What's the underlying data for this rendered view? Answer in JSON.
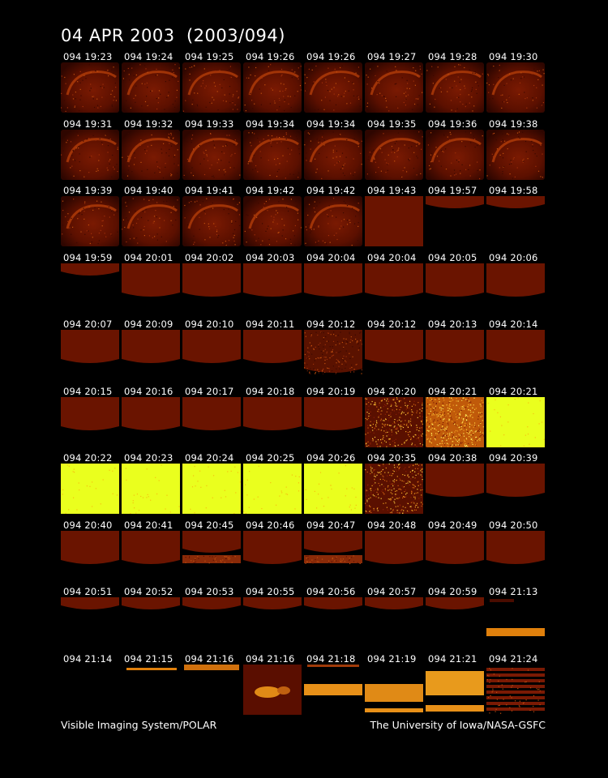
{
  "title": "04 APR 2003  (2003/094)",
  "footer": {
    "left": "Visible Imaging System/POLAR",
    "right": "The University of Iowa/NASA-GSFC"
  },
  "colors": {
    "background": "#000000",
    "dim": "#3a0800",
    "red": "#6a1400",
    "glow": "#b8400a",
    "orange": "#e0800c",
    "yellow": "#eaff1e"
  },
  "frames": [
    {
      "time": "094 19:23",
      "look": "aurora"
    },
    {
      "time": "094 19:24",
      "look": "aurora"
    },
    {
      "time": "094 19:25",
      "look": "aurora"
    },
    {
      "time": "094 19:26",
      "look": "aurora"
    },
    {
      "time": "094 19:26",
      "look": "aurora"
    },
    {
      "time": "094 19:27",
      "look": "aurora"
    },
    {
      "time": "094 19:28",
      "look": "aurora"
    },
    {
      "time": "094 19:30",
      "look": "aurora"
    },
    {
      "time": "094 19:31",
      "look": "aurora"
    },
    {
      "time": "094 19:32",
      "look": "aurora"
    },
    {
      "time": "094 19:33",
      "look": "aurora"
    },
    {
      "time": "094 19:34",
      "look": "aurora"
    },
    {
      "time": "094 19:34",
      "look": "aurora"
    },
    {
      "time": "094 19:35",
      "look": "aurora"
    },
    {
      "time": "094 19:36",
      "look": "aurora"
    },
    {
      "time": "094 19:38",
      "look": "aurora"
    },
    {
      "time": "094 19:39",
      "look": "aurora"
    },
    {
      "time": "094 19:40",
      "look": "aurora"
    },
    {
      "time": "094 19:41",
      "look": "aurora"
    },
    {
      "time": "094 19:42",
      "look": "aurora"
    },
    {
      "time": "094 19:42",
      "look": "aurora"
    },
    {
      "time": "094 19:43",
      "look": "red"
    },
    {
      "time": "094 19:57",
      "look": "strip"
    },
    {
      "time": "094 19:58",
      "look": "strip"
    },
    {
      "time": "094 19:59",
      "look": "strip"
    },
    {
      "time": "094 20:01",
      "look": "band"
    },
    {
      "time": "094 20:02",
      "look": "band"
    },
    {
      "time": "094 20:03",
      "look": "band"
    },
    {
      "time": "094 20:04",
      "look": "band"
    },
    {
      "time": "094 20:04",
      "look": "band"
    },
    {
      "time": "094 20:05",
      "look": "band"
    },
    {
      "time": "094 20:06",
      "look": "band"
    },
    {
      "time": "094 20:07",
      "look": "band"
    },
    {
      "time": "094 20:09",
      "look": "band"
    },
    {
      "time": "094 20:10",
      "look": "band"
    },
    {
      "time": "094 20:11",
      "look": "band"
    },
    {
      "time": "094 20:12",
      "look": "speckle"
    },
    {
      "time": "094 20:12",
      "look": "band"
    },
    {
      "time": "094 20:13",
      "look": "band"
    },
    {
      "time": "094 20:14",
      "look": "band"
    },
    {
      "time": "094 20:15",
      "look": "band"
    },
    {
      "time": "094 20:16",
      "look": "band"
    },
    {
      "time": "094 20:17",
      "look": "band"
    },
    {
      "time": "094 20:18",
      "look": "band"
    },
    {
      "time": "094 20:19",
      "look": "band"
    },
    {
      "time": "094 20:20",
      "look": "noise"
    },
    {
      "time": "094 20:21",
      "look": "noise-bright"
    },
    {
      "time": "094 20:21",
      "look": "yellow"
    },
    {
      "time": "094 20:22",
      "look": "yellow"
    },
    {
      "time": "094 20:23",
      "look": "yellow"
    },
    {
      "time": "094 20:24",
      "look": "yellow"
    },
    {
      "time": "094 20:25",
      "look": "yellow"
    },
    {
      "time": "094 20:26",
      "look": "yellow"
    },
    {
      "time": "094 20:35",
      "look": "noise"
    },
    {
      "time": "094 20:38",
      "look": "band"
    },
    {
      "time": "094 20:39",
      "look": "band"
    },
    {
      "time": "094 20:40",
      "look": "band"
    },
    {
      "time": "094 20:41",
      "look": "band"
    },
    {
      "time": "094 20:45",
      "look": "band-low"
    },
    {
      "time": "094 20:46",
      "look": "band"
    },
    {
      "time": "094 20:47",
      "look": "band-low"
    },
    {
      "time": "094 20:48",
      "look": "band"
    },
    {
      "time": "094 20:49",
      "look": "band"
    },
    {
      "time": "094 20:50",
      "look": "band"
    },
    {
      "time": "094 20:51",
      "look": "strip"
    },
    {
      "time": "094 20:52",
      "look": "strip"
    },
    {
      "time": "094 20:53",
      "look": "strip"
    },
    {
      "time": "094 20:55",
      "look": "strip"
    },
    {
      "time": "094 20:56",
      "look": "strip"
    },
    {
      "time": "094 20:57",
      "look": "strip"
    },
    {
      "time": "094 20:59",
      "look": "strip"
    },
    {
      "time": "094 21:13",
      "look": "orange-line"
    },
    {
      "time": "094 21:14",
      "look": "empty"
    },
    {
      "time": "094 21:15",
      "look": "thin-orange"
    },
    {
      "time": "094 21:16",
      "look": "top-orange"
    },
    {
      "time": "094 21:16",
      "look": "blob"
    },
    {
      "time": "094 21:18",
      "look": "orange-bar"
    },
    {
      "time": "094 21:19",
      "look": "orange-block"
    },
    {
      "time": "094 21:21",
      "look": "orange-big"
    },
    {
      "time": "094 21:24",
      "look": "striped"
    }
  ]
}
